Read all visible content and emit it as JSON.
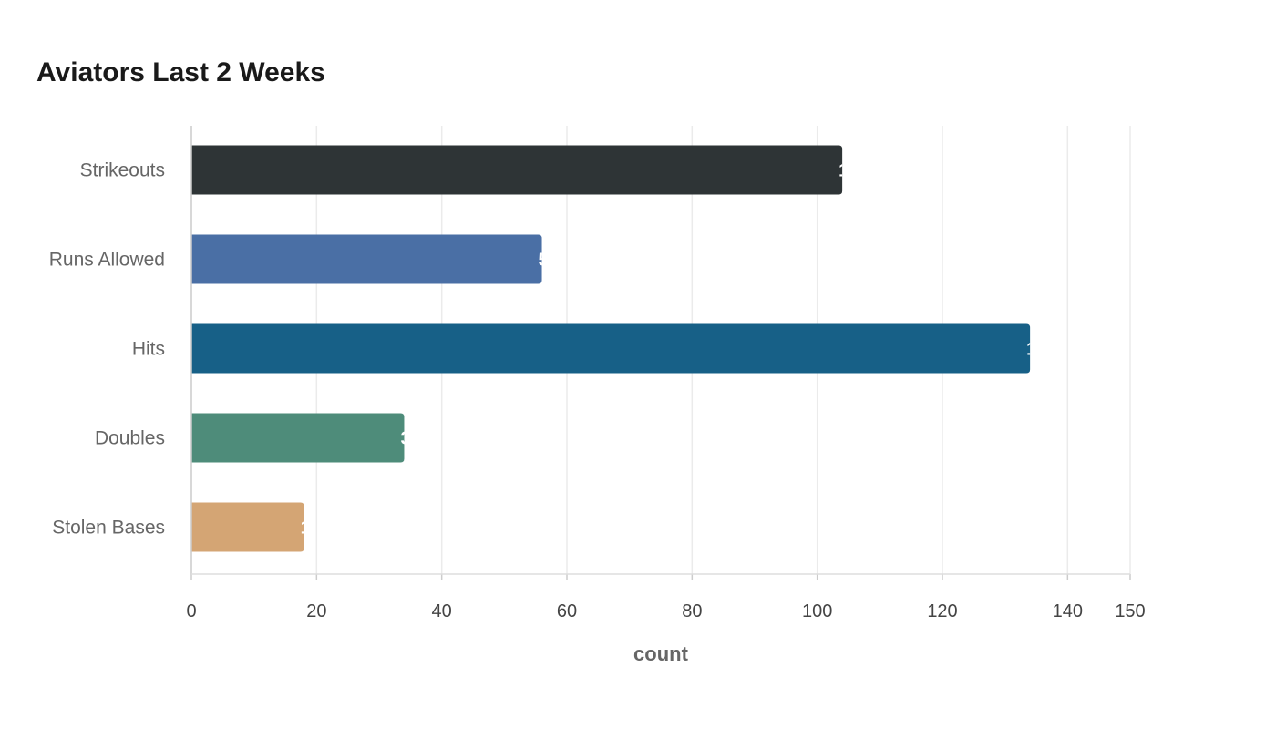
{
  "chart_data": {
    "type": "bar",
    "orientation": "horizontal",
    "title": "Aviators Last 2 Weeks",
    "xlabel": "count",
    "ylabel": "",
    "categories": [
      "Strikeouts",
      "Runs Allowed",
      "Hits",
      "Doubles",
      "Stolen Bases"
    ],
    "values": [
      104,
      56,
      134,
      34,
      18
    ],
    "colors": [
      "#2e3436",
      "#4a6fa5",
      "#176087",
      "#4e8c7a",
      "#d4a574"
    ],
    "xlim": [
      0,
      150
    ],
    "xticks": [
      0,
      20,
      40,
      60,
      80,
      100,
      120,
      140,
      150
    ],
    "grid": "vertical",
    "legend": "none"
  }
}
